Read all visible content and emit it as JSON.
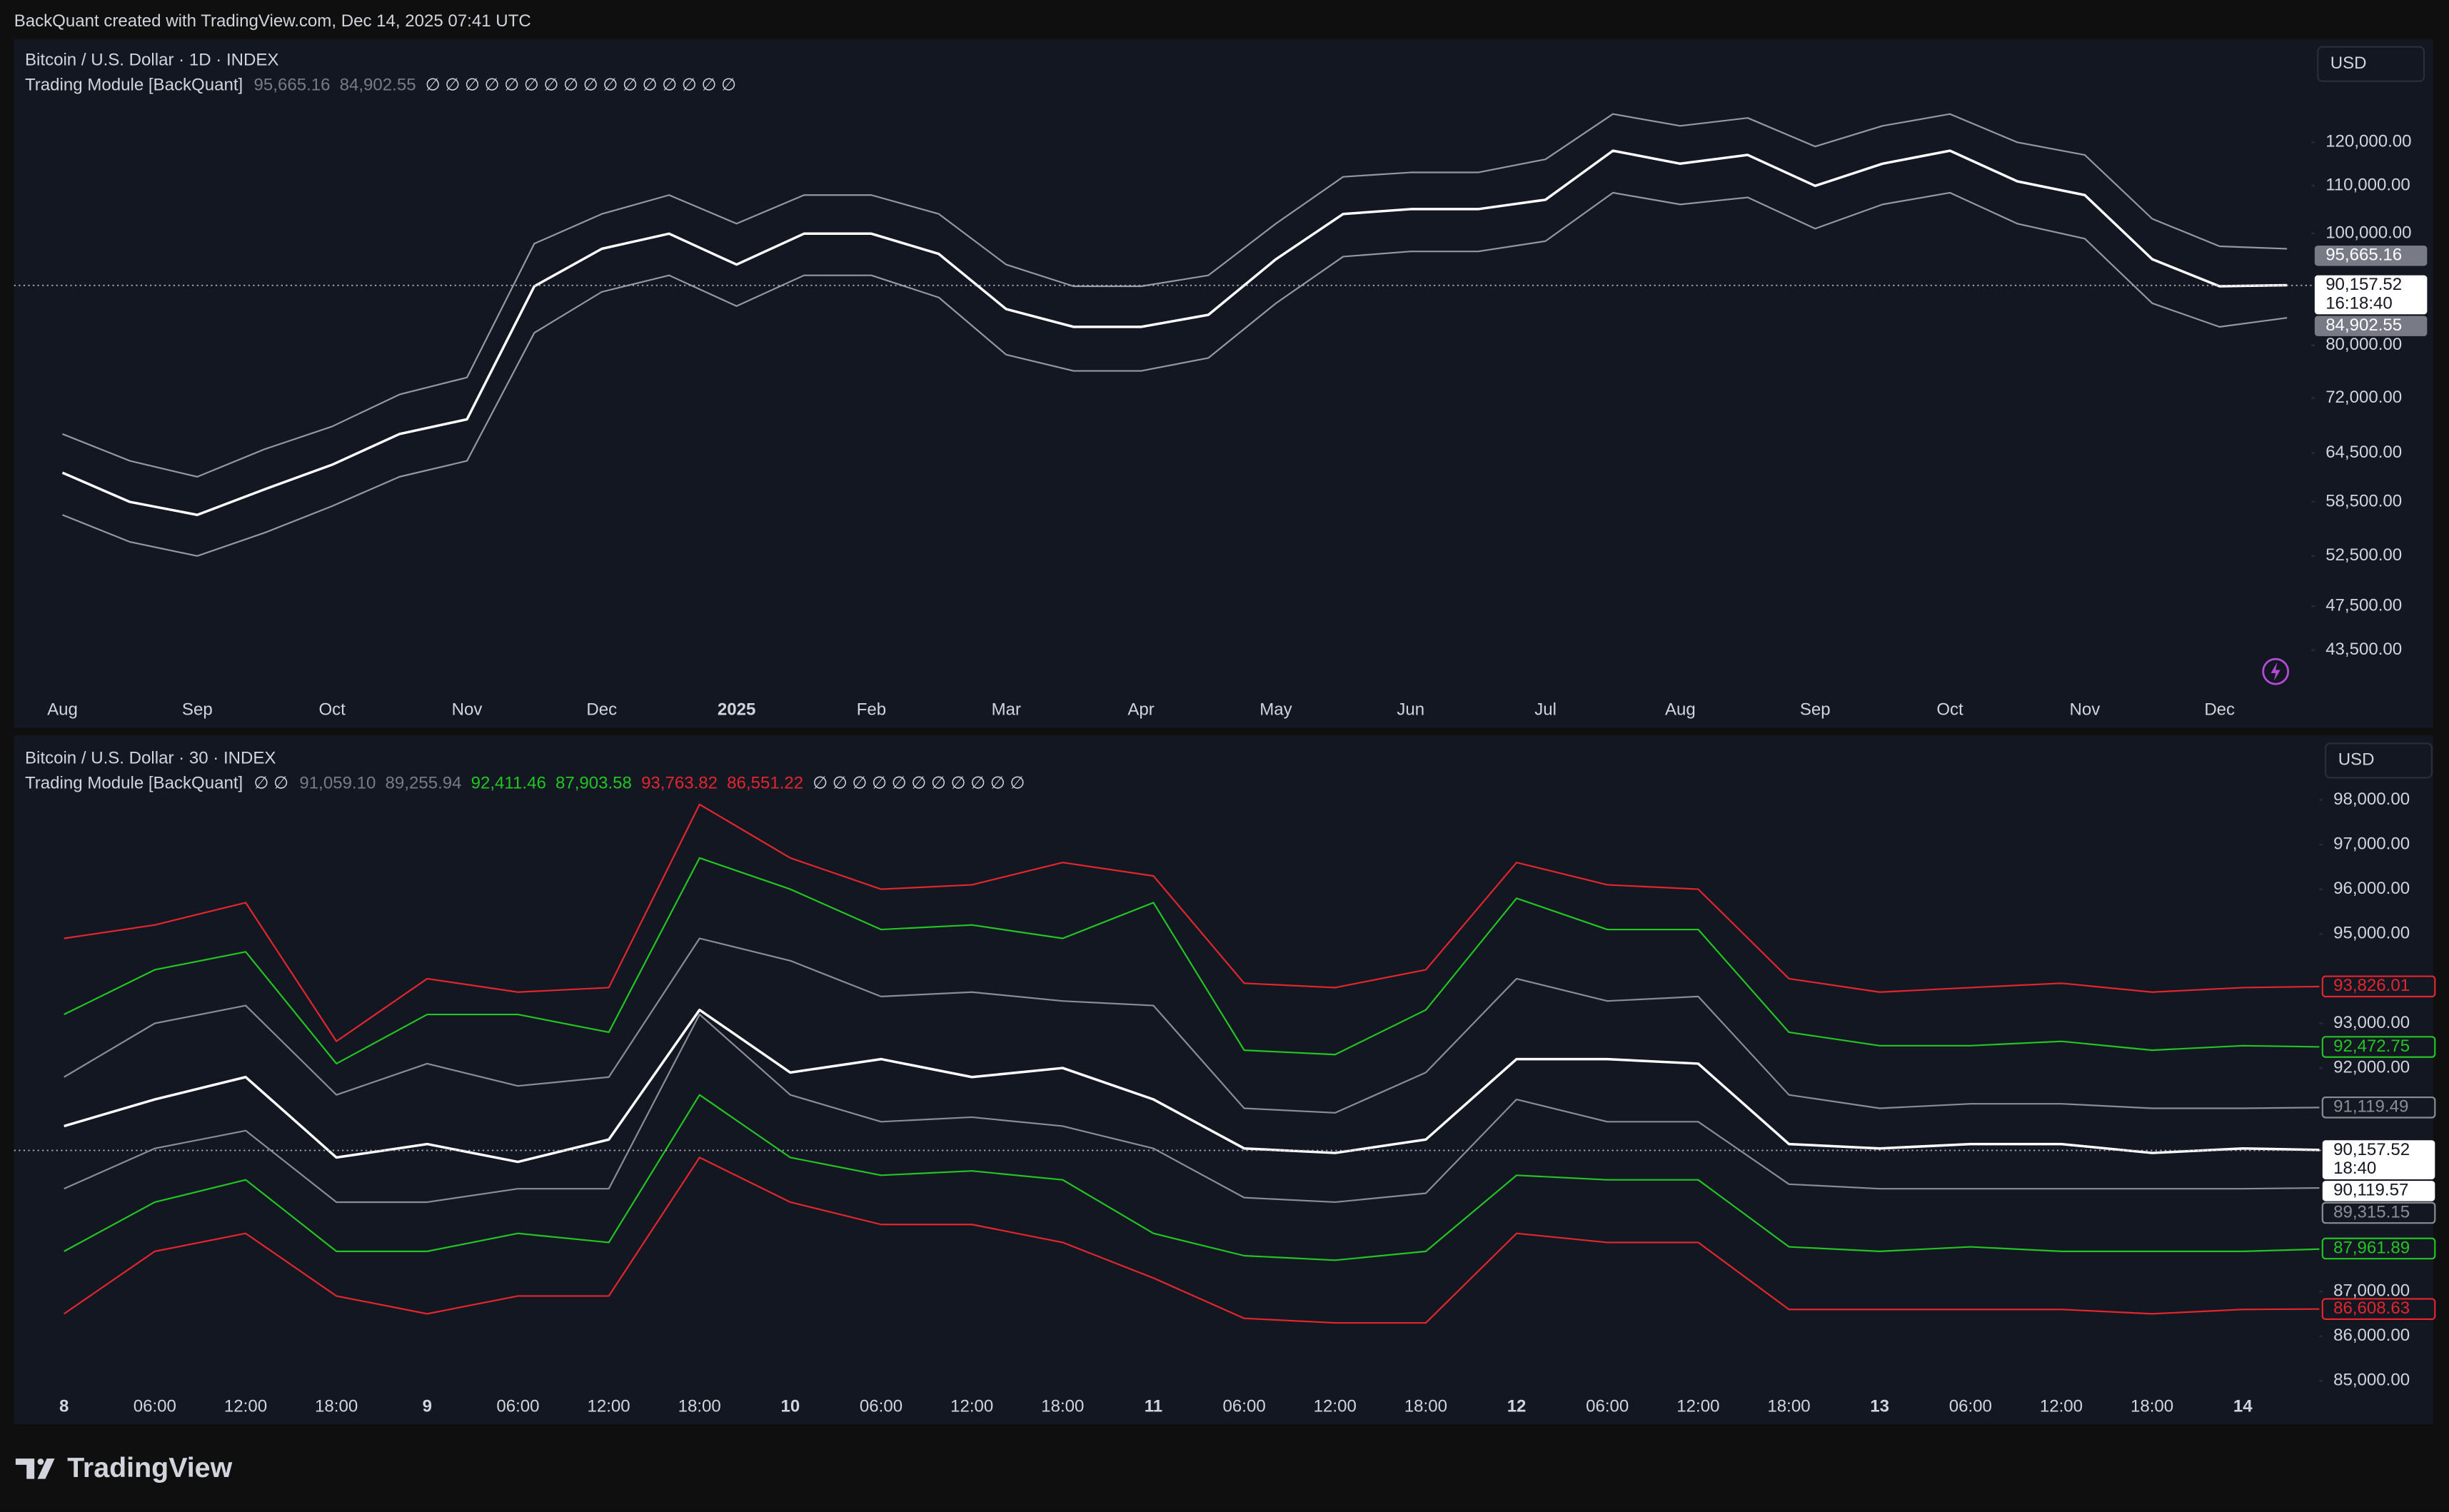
{
  "header": {
    "credit": "BackQuant created with TradingView.com, Dec 14, 2025 07:41 UTC"
  },
  "footer": {
    "brand": "TradingView"
  },
  "chart_data": [
    {
      "type": "line",
      "title": "Bitcoin / U.S. Dollar · 1D · INDEX",
      "indicator": "Trading Module [BackQuant]",
      "legend_values": [
        {
          "value": 95665.16,
          "label": "95,665.16",
          "color": "#787b86"
        },
        {
          "value": 84902.55,
          "label": "84,902.55",
          "color": "#787b86"
        }
      ],
      "legend_symbols": "∅ ∅ ∅ ∅ ∅ ∅ ∅ ∅ ∅ ∅ ∅ ∅ ∅ ∅ ∅ ∅",
      "currency": "USD",
      "log_scale": true,
      "categories": [
        "Aug",
        null,
        "Sep",
        null,
        "Oct",
        null,
        "Nov",
        null,
        "Dec",
        null,
        "2025",
        null,
        "Feb",
        null,
        "Mar",
        null,
        "Apr",
        null,
        "May",
        null,
        "Jun",
        null,
        "Jul",
        null,
        "Aug",
        null,
        "Sep",
        null,
        "Oct",
        null,
        "Nov",
        null,
        "Dec",
        null
      ],
      "series": [
        {
          "color": "#9598a1",
          "values": [
            67000,
            63500,
            61500,
            65000,
            68000,
            72500,
            75000,
            98000,
            104000,
            108000,
            102000,
            108000,
            108000,
            104000,
            94000,
            90000,
            90000,
            92000,
            102000,
            112000,
            113000,
            113000,
            116000,
            127000,
            124000,
            126000,
            119000,
            124000,
            127000,
            120000,
            117000,
            103000,
            97500,
            97000
          ]
        },
        {
          "color": "#9598a1",
          "values": [
            57000,
            54000,
            52500,
            55000,
            58000,
            61500,
            63500,
            82000,
            89000,
            92000,
            86500,
            92000,
            92000,
            88000,
            78500,
            76000,
            76000,
            78000,
            87000,
            95500,
            96500,
            96500,
            98500,
            108500,
            106000,
            107500,
            101000,
            106000,
            108500,
            102000,
            99000,
            87000,
            83000,
            84500
          ]
        },
        {
          "color": "#ffffff",
          "values": [
            62000,
            58500,
            57000,
            60000,
            63000,
            67000,
            69000,
            90000,
            97000,
            100000,
            94000,
            100000,
            100000,
            96000,
            86000,
            83000,
            83000,
            85000,
            95000,
            104000,
            105000,
            105000,
            107000,
            118000,
            115000,
            117000,
            110000,
            115000,
            118000,
            111000,
            108000,
            95000,
            90000,
            90200
          ]
        }
      ],
      "ylim": [
        40400,
        147500
      ],
      "yticks": [
        {
          "value": 43500,
          "label": "43,500.00"
        },
        {
          "value": 47500,
          "label": "47,500.00"
        },
        {
          "value": 52500,
          "label": "52,500.00"
        },
        {
          "value": 58500,
          "label": "58,500.00"
        },
        {
          "value": 64500,
          "label": "64,500.00"
        },
        {
          "value": 72000,
          "label": "72,000.00"
        },
        {
          "value": 80000,
          "label": "80,000.00"
        },
        {
          "value": 100000,
          "label": "100,000.00"
        },
        {
          "value": 110000,
          "label": "110,000.00"
        },
        {
          "value": 120000,
          "label": "120,000.00"
        }
      ],
      "price_labels": [
        {
          "value": 95665.16,
          "label": "95,665.16",
          "style": "filled",
          "color": "#787b86"
        },
        {
          "value": 90157.52,
          "label": "90,157.52",
          "style": "white",
          "color": "#ffffff",
          "countdown": "16:18:40"
        },
        {
          "value": 84902.55,
          "label": "84,902.55",
          "style": "filled",
          "color": "#787b86"
        }
      ]
    },
    {
      "type": "line",
      "title": "Bitcoin / U.S. Dollar · 30 · INDEX",
      "indicator": "Trading Module [BackQuant]",
      "legend_prefix": "∅ ∅",
      "legend_values": [
        {
          "value": 91059.1,
          "label": "91,059.10",
          "color": "#787b86"
        },
        {
          "value": 89255.94,
          "label": "89,255.94",
          "color": "#787b86"
        },
        {
          "value": 92411.46,
          "label": "92,411.46",
          "color": "#22c522"
        },
        {
          "value": 87903.58,
          "label": "87,903.58",
          "color": "#22c522"
        },
        {
          "value": 93763.82,
          "label": "93,763.82",
          "color": "#e3262e"
        },
        {
          "value": 86551.22,
          "label": "86,551.22",
          "color": "#e3262e"
        }
      ],
      "legend_symbols": "∅ ∅ ∅ ∅ ∅ ∅ ∅ ∅ ∅ ∅ ∅",
      "currency": "USD",
      "log_scale": false,
      "categories": [
        "8",
        "06:00",
        "12:00",
        "18:00",
        "9",
        "06:00",
        "12:00",
        "18:00",
        "10",
        "06:00",
        "12:00",
        "18:00",
        "11",
        "06:00",
        "12:00",
        "18:00",
        "12",
        "06:00",
        "12:00",
        "18:00",
        "13",
        "06:00",
        "12:00",
        "18:00",
        "14",
        null
      ],
      "series": [
        {
          "color": "#e3262e",
          "values": [
            94900,
            95200,
            95700,
            92600,
            94000,
            93700,
            93800,
            97900,
            96700,
            96000,
            96100,
            96600,
            96300,
            93900,
            93800,
            94200,
            96600,
            96100,
            96000,
            94000,
            93700,
            93800,
            93900,
            93700,
            93800,
            93830
          ]
        },
        {
          "color": "#22c522",
          "values": [
            93200,
            94200,
            94600,
            92100,
            93200,
            93200,
            92800,
            96700,
            96000,
            95100,
            95200,
            94900,
            95700,
            92400,
            92300,
            93300,
            95800,
            95100,
            95100,
            92800,
            92500,
            92500,
            92600,
            92400,
            92500,
            92470
          ]
        },
        {
          "color": "#8a8d96",
          "values": [
            91800,
            93000,
            93400,
            91400,
            92100,
            91600,
            91800,
            94900,
            94400,
            93600,
            93700,
            93500,
            93400,
            91100,
            91000,
            91900,
            94000,
            93500,
            93600,
            91400,
            91100,
            91200,
            91200,
            91100,
            91100,
            91120
          ]
        },
        {
          "color": "#8a8d96",
          "values": [
            89300,
            90200,
            90600,
            89000,
            89000,
            89300,
            89300,
            93200,
            91400,
            90800,
            90900,
            90700,
            90200,
            89100,
            89000,
            89200,
            91300,
            90800,
            90800,
            89400,
            89300,
            89300,
            89300,
            89300,
            89300,
            89320
          ]
        },
        {
          "color": "#22c522",
          "values": [
            87900,
            89000,
            89500,
            87900,
            87900,
            88300,
            88100,
            91400,
            90000,
            89600,
            89700,
            89500,
            88300,
            87800,
            87700,
            87900,
            89600,
            89500,
            89500,
            88000,
            87900,
            88000,
            87900,
            87900,
            87900,
            87960
          ]
        },
        {
          "color": "#e3262e",
          "values": [
            86500,
            87900,
            88300,
            86900,
            86500,
            86900,
            86900,
            90000,
            89000,
            88500,
            88500,
            88100,
            87300,
            86400,
            86300,
            86300,
            88300,
            88100,
            88100,
            86600,
            86600,
            86600,
            86600,
            86500,
            86600,
            86610
          ]
        },
        {
          "color": "#ffffff",
          "values": [
            90700,
            91300,
            91800,
            90000,
            90300,
            89900,
            90400,
            93300,
            91900,
            92200,
            91800,
            92000,
            91300,
            90200,
            90100,
            90400,
            92200,
            92200,
            92100,
            90300,
            90200,
            90300,
            90300,
            90100,
            90200,
            90160
          ]
        }
      ],
      "ylim": [
        84800,
        99300
      ],
      "yticks": [
        {
          "value": 85000,
          "label": "85,000.00"
        },
        {
          "value": 86000,
          "label": "86,000.00"
        },
        {
          "value": 87000,
          "label": "87,000.00"
        },
        {
          "value": 92000,
          "label": "92,000.00"
        },
        {
          "value": 93000,
          "label": "93,000.00"
        },
        {
          "value": 95000,
          "label": "95,000.00"
        },
        {
          "value": 96000,
          "label": "96,000.00"
        },
        {
          "value": 97000,
          "label": "97,000.00"
        },
        {
          "value": 98000,
          "label": "98,000.00"
        }
      ],
      "price_labels": [
        {
          "value": 93826.01,
          "label": "93,826.01",
          "style": "outline",
          "color": "#e3262e"
        },
        {
          "value": 92472.75,
          "label": "92,472.75",
          "style": "outline",
          "color": "#22c522"
        },
        {
          "value": 91119.49,
          "label": "91,119.49",
          "style": "outline",
          "color": "#8a8d96"
        },
        {
          "value": 90157.52,
          "label": "90,157.52",
          "style": "white",
          "color": "#ffffff",
          "countdown": "18:40"
        },
        {
          "value": 90119.57,
          "label": "90,119.57",
          "style": "white",
          "color": "#ffffff"
        },
        {
          "value": 89315.15,
          "label": "89,315.15",
          "style": "outline",
          "color": "#8a8d96"
        },
        {
          "value": 87961.89,
          "label": "87,961.89",
          "style": "outline",
          "color": "#22c522"
        },
        {
          "value": 86608.63,
          "label": "86,608.63",
          "style": "outline",
          "color": "#e3262e"
        }
      ]
    }
  ]
}
